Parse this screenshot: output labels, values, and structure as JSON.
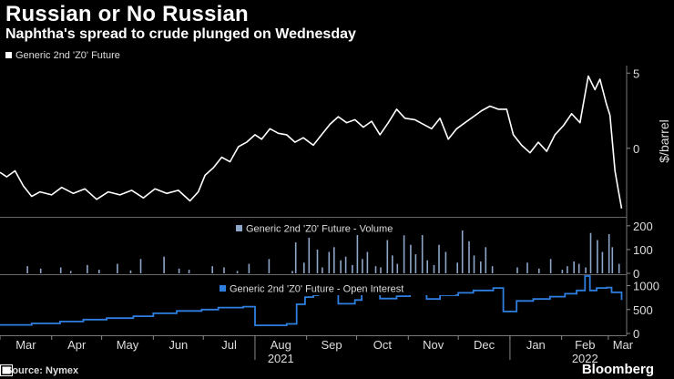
{
  "header": {
    "title": "Russian or No Russian",
    "subtitle": "Naphtha's spread to crude plunged on Wednesday"
  },
  "footer": {
    "source": "Source: Nymex",
    "brand": "Bloomberg"
  },
  "colors": {
    "background": "#000000",
    "price_line": "#ffffff",
    "volume_bars": "#8ea6c8",
    "open_interest_line": "#2f7fe0"
  },
  "chart_data": [
    {
      "type": "line",
      "legend": "Generic 2nd 'Z0' Future",
      "ylabel": "$/barrel",
      "yticks": [
        0,
        5
      ],
      "ylim": [
        -4.5,
        5.5
      ],
      "x_months": [
        "Mar",
        "Apr",
        "May",
        "Jun",
        "Jul",
        "Aug",
        "Sep",
        "Oct",
        "Nov",
        "Dec",
        "Jan",
        "Feb",
        "Mar"
      ],
      "x_years": [
        {
          "label": "2021",
          "month": "Aug"
        },
        {
          "label": "2022",
          "month": "Feb"
        }
      ],
      "series": [
        {
          "name": "Generic 2nd 'Z0' Future",
          "x": [
            "2021-03-01",
            "2021-03-05",
            "2021-03-10",
            "2021-03-15",
            "2021-03-20",
            "2021-03-25",
            "2021-04-01",
            "2021-04-07",
            "2021-04-14",
            "2021-04-21",
            "2021-04-28",
            "2021-05-05",
            "2021-05-12",
            "2021-05-19",
            "2021-05-26",
            "2021-06-02",
            "2021-06-09",
            "2021-06-16",
            "2021-06-23",
            "2021-06-28",
            "2021-07-02",
            "2021-07-07",
            "2021-07-12",
            "2021-07-17",
            "2021-07-22",
            "2021-07-27",
            "2021-08-01",
            "2021-08-05",
            "2021-08-10",
            "2021-08-15",
            "2021-08-20",
            "2021-08-25",
            "2021-08-30",
            "2021-09-05",
            "2021-09-10",
            "2021-09-15",
            "2021-09-20",
            "2021-09-25",
            "2021-09-30",
            "2021-10-05",
            "2021-10-10",
            "2021-10-15",
            "2021-10-20",
            "2021-10-25",
            "2021-10-30",
            "2021-11-05",
            "2021-11-10",
            "2021-11-15",
            "2021-11-20",
            "2021-11-25",
            "2021-11-30",
            "2021-12-05",
            "2021-12-10",
            "2021-12-15",
            "2021-12-20",
            "2021-12-25",
            "2021-12-30",
            "2022-01-03",
            "2022-01-08",
            "2022-01-13",
            "2022-01-18",
            "2022-01-23",
            "2022-01-28",
            "2022-02-02",
            "2022-02-07",
            "2022-02-12",
            "2022-02-17",
            "2022-02-21",
            "2022-02-24",
            "2022-02-28",
            "2022-03-02",
            "2022-03-05",
            "2022-03-07",
            "2022-03-09"
          ],
          "values": [
            -1.6,
            -1.9,
            -1.5,
            -2.5,
            -3.2,
            -2.9,
            -3.1,
            -2.6,
            -3.0,
            -2.7,
            -3.4,
            -2.9,
            -3.1,
            -2.8,
            -3.3,
            -2.7,
            -3.0,
            -2.8,
            -3.5,
            -2.9,
            -1.8,
            -1.3,
            -0.6,
            -0.9,
            0.1,
            0.4,
            0.9,
            0.6,
            1.3,
            1.0,
            0.9,
            0.4,
            0.7,
            0.2,
            0.9,
            1.6,
            2.1,
            1.7,
            1.9,
            1.4,
            1.8,
            0.9,
            1.7,
            2.6,
            2.0,
            1.9,
            1.6,
            1.3,
            2.0,
            0.6,
            1.3,
            1.7,
            2.1,
            2.5,
            2.8,
            2.6,
            2.6,
            0.9,
            0.2,
            -0.3,
            0.4,
            -0.2,
            0.9,
            1.5,
            2.3,
            1.7,
            4.8,
            3.9,
            4.6,
            2.9,
            2.2,
            -1.5,
            -2.8,
            -4.0
          ]
        }
      ]
    },
    {
      "type": "bar",
      "legend": "Generic 2nd 'Z0' Future - Volume",
      "yticks": [
        0,
        100,
        200
      ],
      "ylim": [
        0,
        230
      ],
      "series": [
        {
          "name": "Generic 2nd 'Z0' Future - Volume",
          "x": [
            "2021-03-17",
            "2021-03-25",
            "2021-04-06",
            "2021-04-12",
            "2021-04-22",
            "2021-04-29",
            "2021-05-10",
            "2021-05-18",
            "2021-05-24",
            "2021-06-07",
            "2021-06-16",
            "2021-06-22",
            "2021-07-06",
            "2021-07-13",
            "2021-07-21",
            "2021-07-28",
            "2021-08-09",
            "2021-08-23",
            "2021-08-25",
            "2021-08-30",
            "2021-09-02",
            "2021-09-07",
            "2021-09-10",
            "2021-09-14",
            "2021-09-17",
            "2021-09-21",
            "2021-09-24",
            "2021-09-28",
            "2021-10-01",
            "2021-10-04",
            "2021-10-07",
            "2021-10-12",
            "2021-10-15",
            "2021-10-19",
            "2021-10-22",
            "2021-10-25",
            "2021-10-29",
            "2021-11-02",
            "2021-11-05",
            "2021-11-09",
            "2021-11-12",
            "2021-11-16",
            "2021-11-19",
            "2021-11-23",
            "2021-11-30",
            "2021-12-03",
            "2021-12-07",
            "2021-12-10",
            "2021-12-14",
            "2021-12-17",
            "2021-12-21",
            "2022-01-05",
            "2022-01-11",
            "2022-01-18",
            "2022-01-25",
            "2022-02-01",
            "2022-02-04",
            "2022-02-08",
            "2022-02-11",
            "2022-02-15",
            "2022-02-18",
            "2022-02-22",
            "2022-02-25",
            "2022-03-01",
            "2022-03-03",
            "2022-03-07"
          ],
          "values": [
            30,
            20,
            25,
            10,
            35,
            15,
            40,
            12,
            60,
            70,
            20,
            15,
            30,
            25,
            10,
            40,
            60,
            10,
            130,
            45,
            150,
            100,
            25,
            90,
            110,
            55,
            70,
            35,
            170,
            60,
            90,
            30,
            25,
            140,
            75,
            40,
            160,
            120,
            80,
            200,
            55,
            35,
            120,
            90,
            45,
            180,
            135,
            75,
            50,
            110,
            30,
            25,
            45,
            20,
            60,
            15,
            30,
            50,
            40,
            25,
            170,
            140,
            90,
            165,
            110,
            40
          ]
        }
      ]
    },
    {
      "type": "line",
      "legend": "Generic 2nd 'Z0' Future - Open Interest",
      "yticks": [
        0,
        500,
        1000
      ],
      "ylim": [
        0,
        1200
      ],
      "series": [
        {
          "name": "Generic 2nd 'Z0' Future - Open Interest",
          "x": [
            "2021-03-01",
            "2021-03-20",
            "2021-04-06",
            "2021-04-20",
            "2021-05-04",
            "2021-05-20",
            "2021-06-01",
            "2021-06-15",
            "2021-06-30",
            "2021-07-10",
            "2021-07-25",
            "2021-08-01",
            "2021-08-20",
            "2021-08-26",
            "2021-08-31",
            "2021-09-05",
            "2021-09-08",
            "2021-09-12",
            "2021-09-20",
            "2021-09-30",
            "2021-10-04",
            "2021-10-15",
            "2021-10-25",
            "2021-11-02",
            "2021-11-12",
            "2021-11-20",
            "2021-12-01",
            "2021-12-10",
            "2021-12-22",
            "2021-12-28",
            "2022-01-05",
            "2022-01-15",
            "2022-01-25",
            "2022-02-03",
            "2022-02-10",
            "2022-02-15",
            "2022-02-18",
            "2022-02-22",
            "2022-02-28",
            "2022-03-03",
            "2022-03-09"
          ],
          "values": [
            180,
            210,
            250,
            290,
            320,
            360,
            420,
            470,
            500,
            540,
            560,
            170,
            200,
            610,
            760,
            800,
            830,
            1010,
            620,
            700,
            900,
            730,
            780,
            840,
            720,
            800,
            850,
            900,
            950,
            460,
            680,
            720,
            770,
            830,
            900,
            1200,
            900,
            950,
            960,
            860,
            700
          ]
        }
      ]
    }
  ]
}
